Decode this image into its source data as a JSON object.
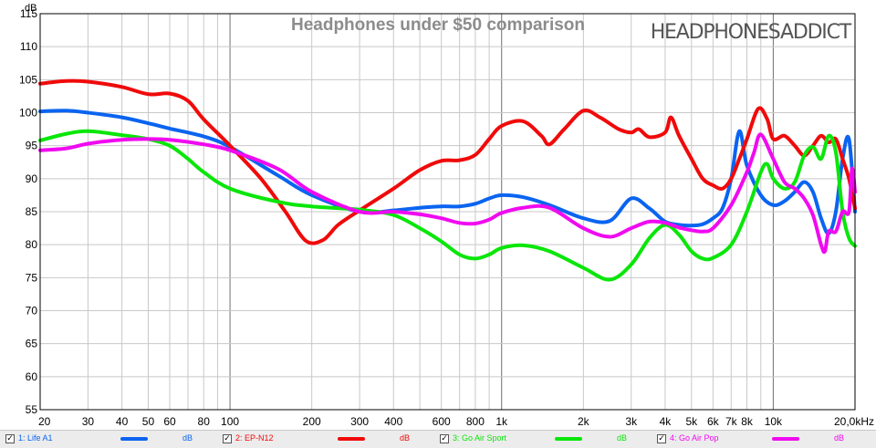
{
  "chart_data": {
    "type": "line",
    "title": "Headphones under $50 comparison",
    "brand": "HEADPHONESADDICT",
    "ylabel": "dB",
    "xlabel": "",
    "xscale": "log",
    "xlim": [
      20,
      20000
    ],
    "ylim": [
      55,
      115
    ],
    "y_ticks": [
      55,
      60,
      65,
      70,
      75,
      80,
      85,
      90,
      95,
      100,
      105,
      110,
      115
    ],
    "x_ticks": [
      {
        "v": 20,
        "label": "20"
      },
      {
        "v": 30,
        "label": "30"
      },
      {
        "v": 40,
        "label": "40"
      },
      {
        "v": 50,
        "label": "50"
      },
      {
        "v": 60,
        "label": "60"
      },
      {
        "v": 80,
        "label": "80"
      },
      {
        "v": 100,
        "label": "100"
      },
      {
        "v": 200,
        "label": "200"
      },
      {
        "v": 300,
        "label": "300"
      },
      {
        "v": 400,
        "label": "400"
      },
      {
        "v": 600,
        "label": "600"
      },
      {
        "v": 800,
        "label": "800"
      },
      {
        "v": 1000,
        "label": "1k"
      },
      {
        "v": 2000,
        "label": "2k"
      },
      {
        "v": 3000,
        "label": "3k"
      },
      {
        "v": 4000,
        "label": "4k"
      },
      {
        "v": 5000,
        "label": "5k"
      },
      {
        "v": 6000,
        "label": "6k"
      },
      {
        "v": 7000,
        "label": "7k"
      },
      {
        "v": 8000,
        "label": "8k"
      },
      {
        "v": 10000,
        "label": "10k"
      },
      {
        "v": 20000,
        "label": "20,0kHz"
      }
    ],
    "grid": true,
    "legend_position": "bottom",
    "series": [
      {
        "name": "1: Life A1",
        "unit": "dB",
        "color": "#0a64f0",
        "checked": true,
        "points": [
          [
            20,
            100.2
          ],
          [
            25,
            100.3
          ],
          [
            30,
            100.0
          ],
          [
            40,
            99.3
          ],
          [
            50,
            98.4
          ],
          [
            60,
            97.6
          ],
          [
            80,
            96.4
          ],
          [
            100,
            94.8
          ],
          [
            150,
            90.5
          ],
          [
            200,
            87.5
          ],
          [
            300,
            85.0
          ],
          [
            400,
            85.2
          ],
          [
            500,
            85.6
          ],
          [
            600,
            85.8
          ],
          [
            700,
            85.8
          ],
          [
            800,
            86.2
          ],
          [
            900,
            87.0
          ],
          [
            1000,
            87.5
          ],
          [
            1200,
            87.2
          ],
          [
            1500,
            86.0
          ],
          [
            2000,
            84.0
          ],
          [
            2500,
            83.6
          ],
          [
            3000,
            87.0
          ],
          [
            3500,
            85.5
          ],
          [
            4000,
            83.5
          ],
          [
            4500,
            83.0
          ],
          [
            5000,
            82.9
          ],
          [
            5500,
            83.1
          ],
          [
            6000,
            84.0
          ],
          [
            6500,
            85.5
          ],
          [
            7000,
            90.0
          ],
          [
            7500,
            97.2
          ],
          [
            8000,
            92.0
          ],
          [
            9000,
            87.5
          ],
          [
            10000,
            86.0
          ],
          [
            11000,
            86.6
          ],
          [
            12000,
            88.0
          ],
          [
            13000,
            89.5
          ],
          [
            14000,
            88.0
          ],
          [
            15000,
            84.0
          ],
          [
            16000,
            81.7
          ],
          [
            17000,
            85.0
          ],
          [
            18000,
            93.0
          ],
          [
            19000,
            96.0
          ],
          [
            20000,
            85.0
          ]
        ]
      },
      {
        "name": "2: EP-N12",
        "unit": "dB",
        "color": "#f00a0a",
        "checked": true,
        "points": [
          [
            20,
            104.4
          ],
          [
            25,
            104.8
          ],
          [
            30,
            104.7
          ],
          [
            40,
            103.9
          ],
          [
            50,
            102.8
          ],
          [
            60,
            102.9
          ],
          [
            70,
            101.8
          ],
          [
            80,
            99.0
          ],
          [
            100,
            95.0
          ],
          [
            130,
            90.0
          ],
          [
            160,
            85.0
          ],
          [
            190,
            80.6
          ],
          [
            220,
            80.7
          ],
          [
            250,
            83.0
          ],
          [
            300,
            85.2
          ],
          [
            400,
            88.5
          ],
          [
            500,
            91.3
          ],
          [
            600,
            92.7
          ],
          [
            700,
            92.8
          ],
          [
            800,
            93.6
          ],
          [
            900,
            96.0
          ],
          [
            1000,
            98.0
          ],
          [
            1200,
            98.7
          ],
          [
            1400,
            96.5
          ],
          [
            1500,
            95.2
          ],
          [
            1700,
            97.5
          ],
          [
            2000,
            100.3
          ],
          [
            2300,
            99.3
          ],
          [
            2700,
            97.5
          ],
          [
            3000,
            97.0
          ],
          [
            3200,
            97.5
          ],
          [
            3500,
            96.3
          ],
          [
            4000,
            97.0
          ],
          [
            4200,
            99.3
          ],
          [
            4500,
            96.5
          ],
          [
            5000,
            93.0
          ],
          [
            5500,
            90.0
          ],
          [
            6000,
            89.0
          ],
          [
            6500,
            88.5
          ],
          [
            7000,
            90.0
          ],
          [
            7500,
            93.0
          ],
          [
            8000,
            96.0
          ],
          [
            8800,
            100.6
          ],
          [
            9500,
            99.0
          ],
          [
            10000,
            96.0
          ],
          [
            11000,
            96.5
          ],
          [
            12000,
            95.0
          ],
          [
            13000,
            93.5
          ],
          [
            14000,
            95.0
          ],
          [
            15000,
            96.5
          ],
          [
            16000,
            95.5
          ],
          [
            17000,
            96.0
          ],
          [
            18000,
            93.0
          ],
          [
            19000,
            90.0
          ],
          [
            20000,
            85.5
          ]
        ]
      },
      {
        "name": "3: Go Air Sport",
        "unit": "dB",
        "color": "#0ae60a",
        "checked": true,
        "points": [
          [
            20,
            95.8
          ],
          [
            25,
            96.8
          ],
          [
            30,
            97.2
          ],
          [
            40,
            96.6
          ],
          [
            50,
            96.0
          ],
          [
            60,
            95.0
          ],
          [
            70,
            93.0
          ],
          [
            80,
            91.0
          ],
          [
            100,
            88.5
          ],
          [
            150,
            86.5
          ],
          [
            200,
            85.8
          ],
          [
            300,
            85.3
          ],
          [
            400,
            84.5
          ],
          [
            500,
            82.5
          ],
          [
            600,
            80.5
          ],
          [
            700,
            78.5
          ],
          [
            800,
            77.9
          ],
          [
            900,
            78.5
          ],
          [
            1000,
            79.5
          ],
          [
            1200,
            79.9
          ],
          [
            1500,
            79.0
          ],
          [
            2000,
            76.5
          ],
          [
            2500,
            74.7
          ],
          [
            3000,
            77.0
          ],
          [
            3500,
            81.0
          ],
          [
            4000,
            83.0
          ],
          [
            4500,
            81.5
          ],
          [
            5000,
            79.0
          ],
          [
            5500,
            77.9
          ],
          [
            6000,
            78.0
          ],
          [
            7000,
            80.0
          ],
          [
            8000,
            85.0
          ],
          [
            9000,
            91.0
          ],
          [
            9500,
            92.2
          ],
          [
            10000,
            90.0
          ],
          [
            11000,
            88.5
          ],
          [
            12000,
            89.5
          ],
          [
            13000,
            93.5
          ],
          [
            14000,
            94.8
          ],
          [
            15000,
            93.0
          ],
          [
            16000,
            96.5
          ],
          [
            17000,
            94.0
          ],
          [
            18000,
            85.0
          ],
          [
            19000,
            81.0
          ],
          [
            20000,
            79.8
          ]
        ]
      },
      {
        "name": "4: Go Air Pop",
        "unit": "dB",
        "color": "#f00af0",
        "checked": true,
        "points": [
          [
            20,
            94.3
          ],
          [
            25,
            94.6
          ],
          [
            30,
            95.3
          ],
          [
            40,
            95.9
          ],
          [
            50,
            96.0
          ],
          [
            60,
            95.9
          ],
          [
            80,
            95.2
          ],
          [
            100,
            94.3
          ],
          [
            150,
            91.5
          ],
          [
            200,
            88.0
          ],
          [
            300,
            85.0
          ],
          [
            400,
            85.0
          ],
          [
            500,
            84.6
          ],
          [
            600,
            84.0
          ],
          [
            700,
            83.3
          ],
          [
            800,
            83.2
          ],
          [
            900,
            83.8
          ],
          [
            1000,
            84.8
          ],
          [
            1200,
            85.6
          ],
          [
            1500,
            85.6
          ],
          [
            2000,
            82.5
          ],
          [
            2500,
            81.2
          ],
          [
            3000,
            82.5
          ],
          [
            3500,
            83.5
          ],
          [
            4000,
            83.3
          ],
          [
            4500,
            82.6
          ],
          [
            5000,
            82.2
          ],
          [
            5500,
            82.0
          ],
          [
            6000,
            82.5
          ],
          [
            7000,
            86.0
          ],
          [
            8000,
            91.0
          ],
          [
            8500,
            94.0
          ],
          [
            9000,
            96.7
          ],
          [
            10000,
            93.0
          ],
          [
            11000,
            89.5
          ],
          [
            12000,
            88.5
          ],
          [
            13000,
            87.0
          ],
          [
            14000,
            84.5
          ],
          [
            15000,
            80.0
          ],
          [
            15500,
            79.0
          ],
          [
            16000,
            82.0
          ],
          [
            17000,
            82.0
          ],
          [
            18000,
            85.0
          ],
          [
            19000,
            85.0
          ],
          [
            19500,
            91.5
          ],
          [
            20000,
            88.0
          ]
        ]
      }
    ]
  }
}
